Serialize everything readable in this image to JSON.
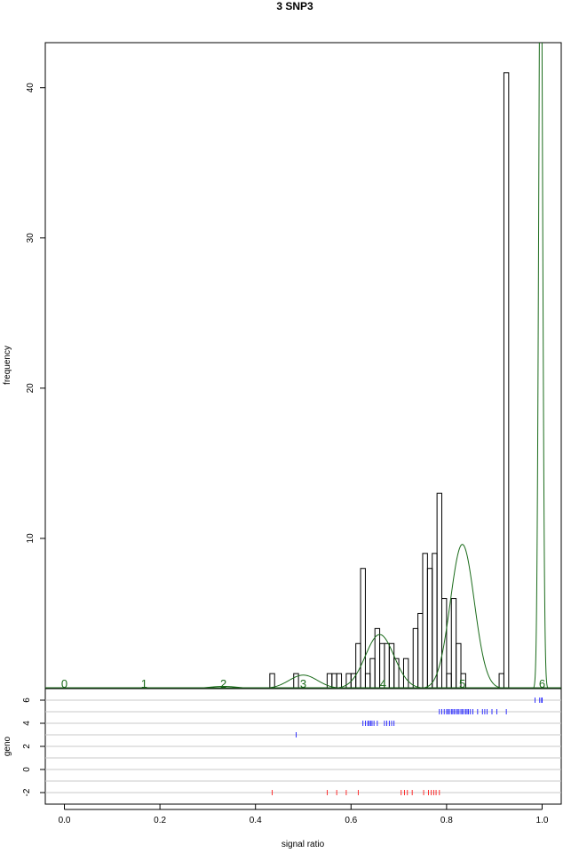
{
  "chart_data": {
    "type": "bar",
    "title": "3 SNP3",
    "xlabel": "signal ratio",
    "ylabel": "frequency",
    "geno_label": "geno",
    "xlim": [
      -0.04,
      1.04
    ],
    "ylim": [
      0,
      43
    ],
    "x_ticks": [
      "0.0",
      "0.2",
      "0.4",
      "0.6",
      "0.8",
      "1.0"
    ],
    "x_tick_values": [
      0,
      0.2,
      0.4,
      0.6,
      0.8,
      1.0
    ],
    "y_ticks": [
      "10",
      "20",
      "30",
      "40"
    ],
    "y_tick_values": [
      10,
      20,
      30,
      40
    ],
    "histogram": {
      "bin_width": 0.01,
      "bins": [
        {
          "x": 0.43,
          "count": 1
        },
        {
          "x": 0.48,
          "count": 1
        },
        {
          "x": 0.55,
          "count": 1
        },
        {
          "x": 0.56,
          "count": 1
        },
        {
          "x": 0.57,
          "count": 1
        },
        {
          "x": 0.59,
          "count": 1
        },
        {
          "x": 0.6,
          "count": 1
        },
        {
          "x": 0.61,
          "count": 3
        },
        {
          "x": 0.62,
          "count": 8
        },
        {
          "x": 0.63,
          "count": 1
        },
        {
          "x": 0.64,
          "count": 2
        },
        {
          "x": 0.65,
          "count": 4
        },
        {
          "x": 0.66,
          "count": 3
        },
        {
          "x": 0.67,
          "count": 3
        },
        {
          "x": 0.68,
          "count": 3
        },
        {
          "x": 0.69,
          "count": 2
        },
        {
          "x": 0.71,
          "count": 2
        },
        {
          "x": 0.73,
          "count": 4
        },
        {
          "x": 0.74,
          "count": 5
        },
        {
          "x": 0.75,
          "count": 9
        },
        {
          "x": 0.76,
          "count": 8
        },
        {
          "x": 0.77,
          "count": 9
        },
        {
          "x": 0.78,
          "count": 13
        },
        {
          "x": 0.79,
          "count": 6
        },
        {
          "x": 0.8,
          "count": 1
        },
        {
          "x": 0.81,
          "count": 6
        },
        {
          "x": 0.82,
          "count": 3
        },
        {
          "x": 0.83,
          "count": 1
        },
        {
          "x": 0.91,
          "count": 1
        },
        {
          "x": 0.92,
          "count": 41
        }
      ]
    },
    "mixture_curves": {
      "color": "#1a6b1a",
      "components": [
        {
          "mean": 0.333,
          "sd": 0.03,
          "height": 0.15
        },
        {
          "mean": 0.5,
          "sd": 0.03,
          "height": 0.9
        },
        {
          "mean": 0.66,
          "sd": 0.03,
          "height": 3.6
        },
        {
          "mean": 0.833,
          "sd": 0.025,
          "height": 9.6
        },
        {
          "mean": 0.997,
          "sd": 0.004,
          "height": 55
        }
      ],
      "labels": [
        {
          "text": "0",
          "x": 0.0
        },
        {
          "text": "1",
          "x": 0.167
        },
        {
          "text": "2",
          "x": 0.333
        },
        {
          "text": "3",
          "x": 0.5
        },
        {
          "text": "4",
          "x": 0.667
        },
        {
          "text": "5",
          "x": 0.833
        },
        {
          "text": "6",
          "x": 1.0
        }
      ]
    },
    "geno_panel": {
      "ylim": [
        -3,
        7
      ],
      "y_ticks": [
        "-2",
        "0",
        "2",
        "4",
        "6"
      ],
      "y_tick_values": [
        -2,
        0,
        2,
        4,
        6
      ],
      "gridlines": [
        -2,
        -1,
        0,
        1,
        2,
        3,
        4,
        5,
        6
      ],
      "points": [
        {
          "geno": 6,
          "color": "#0000ff",
          "xs": [
            0.985,
            0.995,
            0.999,
            1.0
          ]
        },
        {
          "geno": 5,
          "color": "#0000ff",
          "xs": [
            0.785,
            0.79,
            0.795,
            0.8,
            0.803,
            0.806,
            0.81,
            0.813,
            0.816,
            0.82,
            0.823,
            0.826,
            0.83,
            0.833,
            0.836,
            0.84,
            0.843,
            0.846,
            0.85,
            0.855,
            0.865,
            0.875,
            0.88,
            0.885,
            0.895,
            0.905,
            0.925
          ]
        },
        {
          "geno": 4,
          "color": "#0000ff",
          "xs": [
            0.625,
            0.63,
            0.635,
            0.638,
            0.641,
            0.644,
            0.648,
            0.655,
            0.67,
            0.675,
            0.68,
            0.685,
            0.69
          ]
        },
        {
          "geno": 3,
          "color": "#0000ff",
          "xs": [
            0.485
          ]
        },
        {
          "geno": -2,
          "color": "#ff0000",
          "xs": [
            0.435,
            0.55,
            0.57,
            0.59,
            0.615,
            0.705,
            0.712,
            0.718,
            0.728,
            0.752,
            0.762,
            0.768,
            0.773,
            0.778,
            0.785
          ]
        }
      ]
    }
  }
}
